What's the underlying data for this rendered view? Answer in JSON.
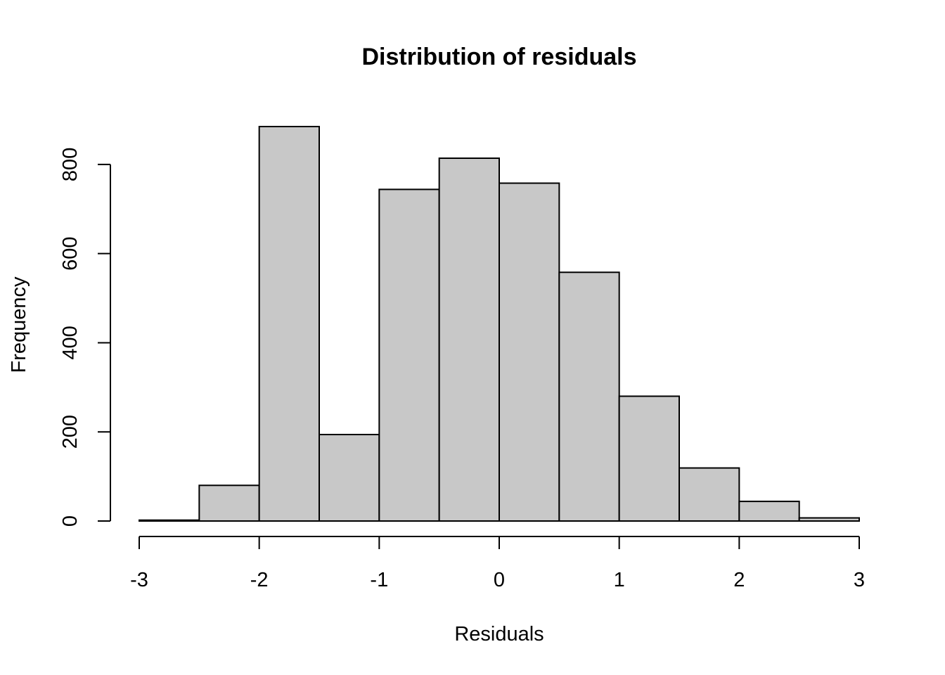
{
  "chart_data": {
    "type": "bar",
    "title": "Distribution of residuals",
    "xlabel": "Residuals",
    "ylabel": "Frequency",
    "bins": [
      {
        "x0": -3.0,
        "x1": -2.5,
        "count": 2
      },
      {
        "x0": -2.5,
        "x1": -2.0,
        "count": 80
      },
      {
        "x0": -2.0,
        "x1": -1.5,
        "count": 885
      },
      {
        "x0": -1.5,
        "x1": -1.0,
        "count": 194
      },
      {
        "x0": -1.0,
        "x1": -0.5,
        "count": 744
      },
      {
        "x0": -0.5,
        "x1": 0.0,
        "count": 814
      },
      {
        "x0": 0.0,
        "x1": 0.5,
        "count": 758
      },
      {
        "x0": 0.5,
        "x1": 1.0,
        "count": 558
      },
      {
        "x0": 1.0,
        "x1": 1.5,
        "count": 280
      },
      {
        "x0": 1.5,
        "x1": 2.0,
        "count": 119
      },
      {
        "x0": 2.0,
        "x1": 2.5,
        "count": 44
      },
      {
        "x0": 2.5,
        "x1": 3.0,
        "count": 7
      }
    ],
    "xlim": [
      -3,
      3
    ],
    "ylim": [
      0,
      885
    ],
    "x_ticks": [
      -3,
      -2,
      -1,
      0,
      1,
      2,
      3
    ],
    "x_tick_labels": [
      "-3",
      "-2",
      "-1",
      "0",
      "1",
      "2",
      "3"
    ],
    "y_ticks": [
      0,
      200,
      400,
      600,
      800
    ],
    "y_tick_labels": [
      "0",
      "200",
      "400",
      "600",
      "800"
    ],
    "grid": false,
    "legend": "none",
    "colors": {
      "bar_fill": "#c8c8c8",
      "bar_stroke": "#000000"
    }
  }
}
